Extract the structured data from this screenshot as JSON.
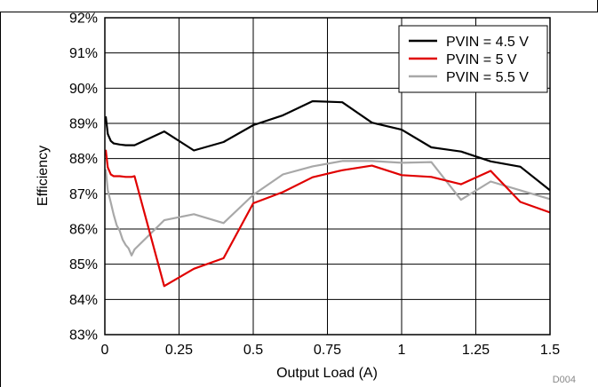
{
  "chart_data": {
    "type": "line",
    "xlabel": "Output Load (A)",
    "ylabel": "Efficiency",
    "xlim": [
      0,
      1.5
    ],
    "ylim": [
      83,
      92
    ],
    "x_ticks": [
      0,
      0.25,
      0.5,
      0.75,
      1,
      1.25,
      1.5
    ],
    "x_tick_labels": [
      "0",
      "0.25",
      "0.5",
      "0.75",
      "1",
      "1.25",
      "1.5"
    ],
    "y_ticks": [
      83,
      84,
      85,
      86,
      87,
      88,
      89,
      90,
      91,
      92
    ],
    "y_tick_labels": [
      "83%",
      "84%",
      "85%",
      "86%",
      "87%",
      "88%",
      "89%",
      "90%",
      "91%",
      "92%"
    ],
    "grid": true,
    "legend_position": "top-right",
    "figure_id": "D004",
    "series": [
      {
        "name": "PVIN = 4.5 V",
        "color": "#000000",
        "x": [
          0.003,
          0.01,
          0.02,
          0.03,
          0.05,
          0.07,
          0.1,
          0.2,
          0.3,
          0.4,
          0.5,
          0.6,
          0.7,
          0.8,
          0.9,
          1.0,
          1.1,
          1.2,
          1.3,
          1.4,
          1.5
        ],
        "y": [
          89.2,
          88.7,
          88.5,
          88.43,
          88.4,
          88.38,
          88.38,
          88.77,
          88.23,
          88.47,
          88.95,
          89.23,
          89.63,
          89.6,
          89.02,
          88.82,
          88.32,
          88.2,
          87.92,
          87.77,
          87.1
        ]
      },
      {
        "name": "PVIN = 5 V",
        "color": "#e00000",
        "x": [
          0.003,
          0.01,
          0.02,
          0.03,
          0.05,
          0.07,
          0.09,
          0.1,
          0.2,
          0.3,
          0.4,
          0.5,
          0.6,
          0.7,
          0.8,
          0.9,
          1.0,
          1.1,
          1.2,
          1.3,
          1.4,
          1.5
        ],
        "y": [
          88.25,
          87.75,
          87.55,
          87.5,
          87.5,
          87.48,
          87.48,
          87.5,
          84.38,
          84.87,
          85.17,
          86.73,
          87.05,
          87.47,
          87.67,
          87.8,
          87.53,
          87.48,
          87.27,
          87.65,
          86.77,
          86.47
        ]
      },
      {
        "name": "PVIN = 5.5 V",
        "color": "#a8a8a8",
        "x": [
          0.003,
          0.01,
          0.02,
          0.03,
          0.04,
          0.05,
          0.06,
          0.07,
          0.08,
          0.09,
          0.1,
          0.2,
          0.3,
          0.4,
          0.5,
          0.6,
          0.7,
          0.8,
          0.9,
          1.0,
          1.1,
          1.2,
          1.3,
          1.4,
          1.5
        ],
        "y": [
          87.7,
          87.1,
          86.75,
          86.4,
          86.1,
          85.95,
          85.7,
          85.55,
          85.45,
          85.25,
          85.42,
          86.25,
          86.42,
          86.17,
          86.97,
          87.55,
          87.78,
          87.93,
          87.93,
          87.88,
          87.9,
          86.83,
          87.35,
          87.1,
          86.85
        ]
      }
    ]
  }
}
